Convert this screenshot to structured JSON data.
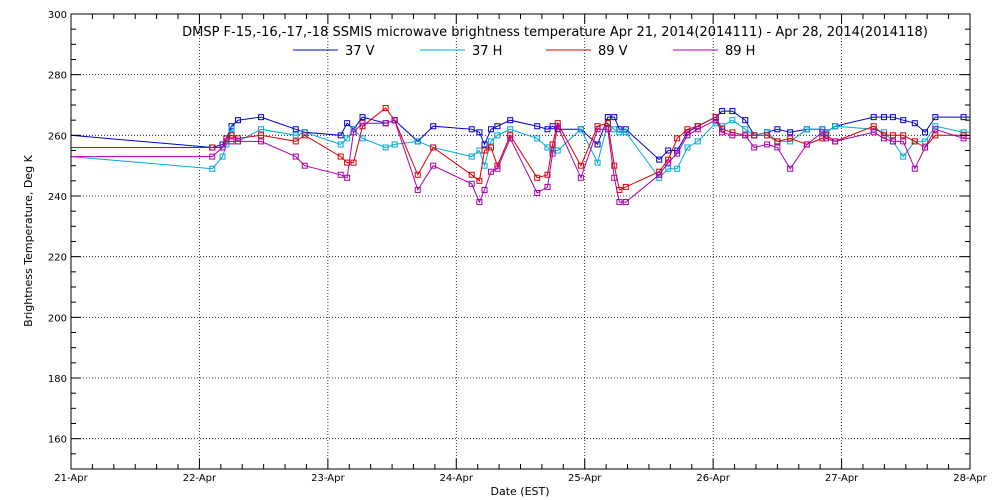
{
  "chart_data": {
    "type": "line",
    "title": "DMSP F-15,-16,-17,-18 SSMIS microwave brightness temperature Apr 21, 2014(2014111) - Apr 28, 2014(2014118)",
    "xlabel": "Date (EST)",
    "ylabel": "Brightness Temperature, Deg K",
    "xlim": [
      0,
      7
    ],
    "ylim": [
      150,
      300
    ],
    "x_tick_values": [
      0,
      1,
      2,
      3,
      4,
      5,
      6,
      7
    ],
    "x_tick_labels": [
      "21-Apr",
      "22-Apr",
      "23-Apr",
      "24-Apr",
      "25-Apr",
      "26-Apr",
      "27-Apr",
      "28-Apr"
    ],
    "y_ticks": [
      160,
      180,
      200,
      220,
      240,
      260,
      280,
      300
    ],
    "grid": true,
    "legend_position": "top",
    "series": [
      {
        "name": "37 V",
        "color": "#0000cc",
        "x": [
          0.0,
          1.1,
          1.18,
          1.21,
          1.25,
          1.3,
          1.48,
          1.75,
          1.82,
          2.1,
          2.15,
          2.2,
          2.27,
          2.45,
          2.52,
          2.7,
          2.82,
          3.12,
          3.18,
          3.22,
          3.27,
          3.32,
          3.42,
          3.63,
          3.71,
          3.75,
          3.79,
          3.97,
          4.1,
          4.18,
          4.23,
          4.27,
          4.32,
          4.58,
          4.65,
          4.72,
          4.8,
          4.88,
          5.02,
          5.07,
          5.15,
          5.25,
          5.32,
          5.42
        ],
        "y": [
          260,
          256,
          257,
          259,
          263,
          265,
          266,
          262,
          261,
          260,
          264,
          262,
          266,
          264,
          265,
          258,
          263,
          262,
          261,
          257,
          262,
          263,
          265,
          263,
          262,
          263,
          262,
          262,
          257,
          266,
          266,
          262,
          262,
          252,
          255,
          255,
          261,
          263,
          266,
          268,
          268,
          265,
          260,
          261
        ],
        "x2": [
          5.5,
          5.6,
          5.73,
          5.85,
          5.88,
          5.95,
          6.25,
          6.33,
          6.4,
          6.48,
          6.57,
          6.65,
          6.73,
          6.95
        ],
        "y2": [
          262,
          261,
          262,
          262,
          261,
          263,
          266,
          266,
          266,
          265,
          264,
          261,
          266,
          266
        ]
      },
      {
        "name": "37 H",
        "color": "#00aadd",
        "x": [
          0.0,
          1.1,
          1.18,
          1.21,
          1.25,
          1.3,
          1.48,
          1.75,
          1.82,
          2.1,
          2.15,
          2.2,
          2.27,
          2.45,
          2.52,
          2.7,
          2.82,
          3.12,
          3.18,
          3.22,
          3.27,
          3.32,
          3.42,
          3.63,
          3.71,
          3.75,
          3.79,
          3.97,
          4.1,
          4.18,
          4.23,
          4.27,
          4.32,
          4.58,
          4.65,
          4.72,
          4.8,
          4.88,
          5.02,
          5.07,
          5.15,
          5.25,
          5.32,
          5.42
        ],
        "y": [
          253,
          249,
          253,
          257,
          262,
          258,
          262,
          260,
          261,
          257,
          259,
          262,
          259,
          256,
          257,
          258,
          256,
          253,
          255,
          250,
          258,
          260,
          262,
          259,
          256,
          255,
          255,
          262,
          251,
          264,
          262,
          261,
          261,
          246,
          249,
          249,
          256,
          258,
          264,
          263,
          265,
          262,
          260,
          261
        ],
        "x2": [
          5.5,
          5.6,
          5.73,
          5.85,
          5.88,
          5.95,
          6.25,
          6.33,
          6.4,
          6.48,
          6.57,
          6.65,
          6.73,
          6.95
        ],
        "y2": [
          258,
          258,
          262,
          262,
          261,
          263,
          262,
          261,
          258,
          253,
          258,
          258,
          263,
          261
        ]
      },
      {
        "name": "89 V",
        "color": "#dd0000",
        "x": [
          0.0,
          1.1,
          1.18,
          1.21,
          1.25,
          1.3,
          1.48,
          1.75,
          1.82,
          2.1,
          2.15,
          2.2,
          2.27,
          2.45,
          2.52,
          2.7,
          2.82,
          3.12,
          3.18,
          3.22,
          3.27,
          3.32,
          3.42,
          3.63,
          3.71,
          3.75,
          3.79,
          3.97,
          4.1,
          4.18,
          4.23,
          4.27,
          4.32,
          4.58,
          4.65,
          4.72,
          4.8,
          4.88,
          5.02,
          5.07,
          5.15,
          5.25,
          5.32,
          5.42
        ],
        "y": [
          256,
          256,
          256,
          259,
          260,
          259,
          260,
          258,
          260,
          253,
          251,
          251,
          263,
          269,
          265,
          247,
          256,
          247,
          245,
          255,
          256,
          250,
          260,
          246,
          247,
          257,
          264,
          250,
          263,
          264,
          250,
          242,
          243,
          248,
          252,
          259,
          262,
          263,
          266,
          262,
          261,
          260,
          260,
          260
        ],
        "x2": [
          5.5,
          5.6,
          5.73,
          5.85,
          5.88,
          5.95,
          6.25,
          6.33,
          6.4,
          6.48,
          6.57,
          6.65,
          6.73,
          6.95
        ],
        "y2": [
          258,
          259,
          257,
          259,
          260,
          258,
          263,
          260,
          260,
          260,
          258,
          256,
          260,
          260
        ]
      },
      {
        "name": "89 H",
        "color": "#aa00aa",
        "x": [
          0.0,
          1.1,
          1.18,
          1.21,
          1.25,
          1.3,
          1.48,
          1.75,
          1.82,
          2.1,
          2.15,
          2.2,
          2.27,
          2.45,
          2.52,
          2.7,
          2.82,
          3.12,
          3.18,
          3.22,
          3.27,
          3.32,
          3.42,
          3.63,
          3.71,
          3.75,
          3.79,
          3.97,
          4.1,
          4.18,
          4.23,
          4.27,
          4.32,
          4.58,
          4.65,
          4.72,
          4.8,
          4.88,
          5.02,
          5.07,
          5.15,
          5.25,
          5.32,
          5.42
        ],
        "y": [
          253,
          253,
          256,
          258,
          258,
          258,
          258,
          253,
          250,
          247,
          246,
          261,
          264,
          264,
          265,
          242,
          250,
          244,
          238,
          242,
          248,
          249,
          259,
          241,
          243,
          254,
          263,
          246,
          262,
          262,
          246,
          238,
          238,
          247,
          251,
          254,
          260,
          262,
          265,
          261,
          260,
          260,
          256,
          257
        ],
        "x2": [
          5.5,
          5.6,
          5.73,
          5.85,
          5.88,
          5.95,
          6.25,
          6.33,
          6.4,
          6.48,
          6.57,
          6.65,
          6.73,
          6.95
        ],
        "y2": [
          256,
          249,
          257,
          261,
          259,
          258,
          261,
          259,
          258,
          258,
          249,
          256,
          262,
          259
        ]
      }
    ]
  }
}
